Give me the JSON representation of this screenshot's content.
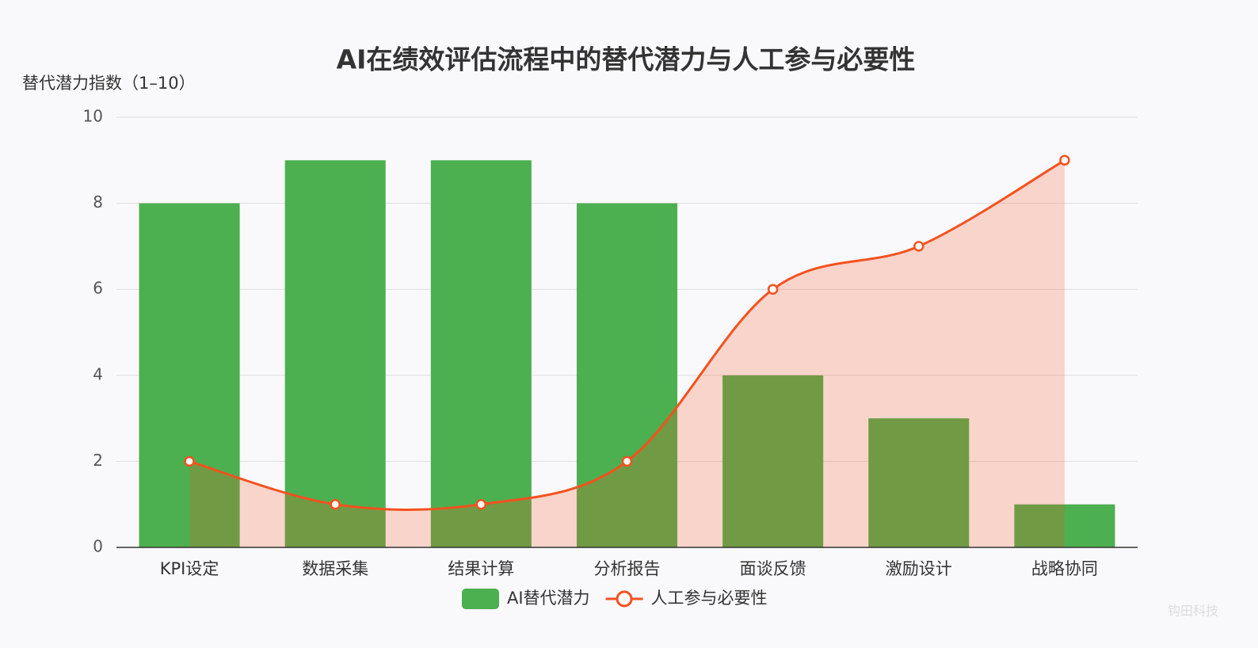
{
  "chart_data": {
    "type": "bar",
    "title": "AI在绩效评估流程中的替代潜力与人工参与必要性",
    "y_label": "替代潜力指数（1–10）",
    "categories": [
      "KPI设定",
      "数据采集",
      "结果计算",
      "分析报告",
      "面谈反馈",
      "激励设计",
      "战略协同"
    ],
    "series": [
      {
        "name": "AI替代潜力",
        "color": "#4caf50",
        "type": "bar",
        "values": [
          8,
          9,
          9,
          8,
          4,
          3,
          1
        ]
      },
      {
        "name": "人工参与必要性",
        "color": "#f4511e",
        "type": "line",
        "smooth": true,
        "area": true,
        "values": [
          2,
          1,
          1,
          2,
          6,
          7,
          9
        ]
      }
    ],
    "ylim": [
      0,
      10
    ],
    "yticks": [
      0,
      2,
      4,
      6,
      8,
      10
    ],
    "grid": true,
    "legend": "bottom",
    "watermark": "钩田科技"
  }
}
